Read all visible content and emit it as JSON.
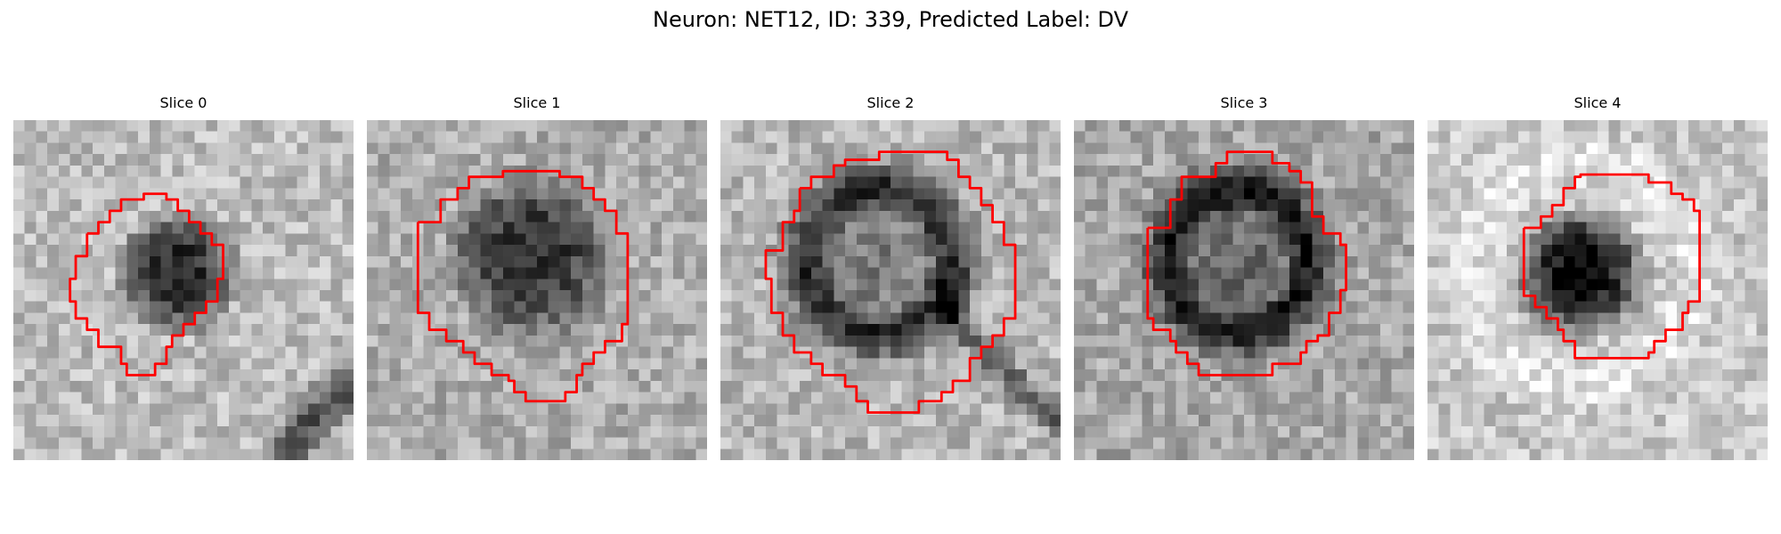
{
  "figure": {
    "title": "Neuron: NET12, ID: 339, Predicted Label: DV",
    "colormap": "grayscale",
    "contour_color": "#ff0000"
  },
  "panels": [
    {
      "title": "Slice 0"
    },
    {
      "title": "Slice 1"
    },
    {
      "title": "Slice 2"
    },
    {
      "title": "Slice 3"
    },
    {
      "title": "Slice 4"
    }
  ]
}
